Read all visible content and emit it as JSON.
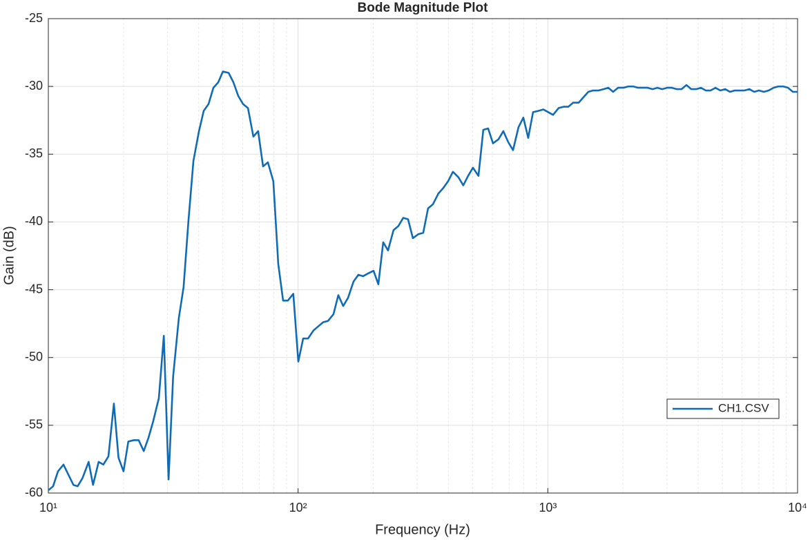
{
  "chart_data": {
    "type": "line",
    "title": "Bode Magnitude Plot",
    "x_label": "Frequency (Hz)",
    "y_label": "Gain (dB)",
    "x_scale": "log",
    "grid": true,
    "legend": "southeast",
    "xlim": [
      10,
      10000
    ],
    "xticks": [
      {
        "value": 10,
        "label": "10¹"
      },
      {
        "value": 100,
        "label": "10²"
      },
      {
        "value": 1000,
        "label": "10³"
      },
      {
        "value": 10000,
        "label": "10⁴"
      }
    ],
    "xminorticks": [
      20,
      30,
      40,
      50,
      60,
      70,
      80,
      90,
      200,
      300,
      400,
      500,
      600,
      700,
      800,
      900,
      2000,
      3000,
      4000,
      5000,
      6000,
      7000,
      8000,
      9000
    ],
    "ylim": [
      -60,
      -25
    ],
    "yticks": [
      -60,
      -55,
      -50,
      -45,
      -40,
      -35,
      -30,
      -25
    ],
    "x": [
      10,
      10.45,
      10.93,
      11.5,
      12.0,
      12.6,
      13.1,
      13.7,
      14.5,
      15.1,
      15.9,
      16.6,
      17.4,
      18.3,
      19.1,
      20.0,
      20.9,
      22.0,
      23.0,
      24.1,
      25.2,
      26.3,
      27.7,
      29.0,
      30.3,
      31.6,
      33.3,
      34.8,
      36.4,
      38.1,
      40.1,
      41.9,
      43.8,
      45.8,
      47.9,
      50.0,
      52.7,
      55.1,
      57.6,
      60.2,
      63.0,
      66.2,
      69.2,
      72.4,
      75.7,
      79.6,
      83.3,
      87.1,
      91.0,
      95.7,
      100.2,
      104.8,
      109.6,
      115.3,
      120.5,
      126.0,
      131.8,
      138.6,
      144.9,
      151.6,
      158.5,
      166.7,
      174.3,
      182.2,
      190.5,
      200.5,
      209.6,
      219.2,
      229.2,
      241.1,
      252.1,
      263.6,
      275.6,
      288.2,
      303.2,
      317.0,
      331.5,
      346.6,
      364.6,
      381.2,
      398.6,
      416.8,
      438.5,
      458.6,
      479.5,
      501.4,
      527.5,
      551.6,
      576.8,
      603.1,
      634.6,
      663.5,
      693.8,
      725.5,
      763.3,
      798.1,
      834.5,
      872.6,
      918.1,
      960.0,
      1003.8,
      1049.6,
      1104.3,
      1154.7,
      1207.4,
      1262.5,
      1328.3,
      1388.9,
      1452.3,
      1518.5,
      1597.6,
      1670.5,
      1746.7,
      1826.4,
      1909.7,
      2009.2,
      2100.9,
      2196.7,
      2297,
      2402,
      2511,
      2626,
      2746,
      2871,
      3002,
      3139,
      3282,
      3432,
      3589,
      3752,
      3924,
      4103,
      4290,
      4486,
      4690,
      4904,
      5128,
      5362,
      5607,
      5862,
      6130,
      6410,
      6702,
      7008,
      7328,
      7662,
      8012,
      8377,
      8760,
      9159,
      9577,
      10000
    ],
    "series": [
      {
        "name": "CH1.CSV",
        "color": "#0f6bb5",
        "values": [
          -59.8,
          -59.5,
          -58.4,
          -57.9,
          -58.6,
          -59.4,
          -59.5,
          -58.9,
          -57.7,
          -59.4,
          -57.7,
          -57.9,
          -57.3,
          -53.4,
          -57.4,
          -58.4,
          -56.2,
          -56.1,
          -56.1,
          -56.9,
          -55.9,
          -54.7,
          -53.0,
          -48.4,
          -59.0,
          -51.4,
          -47.1,
          -44.8,
          -39.9,
          -35.5,
          -33.3,
          -31.8,
          -31.3,
          -30.1,
          -29.7,
          -28.9,
          -29.0,
          -29.7,
          -30.7,
          -31.3,
          -31.6,
          -33.7,
          -33.3,
          -35.9,
          -35.6,
          -37.0,
          -43.1,
          -45.8,
          -45.8,
          -45.3,
          -50.3,
          -48.6,
          -48.6,
          -48.0,
          -47.7,
          -47.4,
          -47.3,
          -46.8,
          -45.4,
          -46.2,
          -45.6,
          -44.4,
          -43.9,
          -44.0,
          -43.8,
          -43.6,
          -44.6,
          -41.5,
          -42.1,
          -40.6,
          -40.3,
          -39.7,
          -39.8,
          -41.2,
          -40.9,
          -40.8,
          -39.0,
          -38.7,
          -37.9,
          -37.5,
          -37.0,
          -36.3,
          -36.7,
          -37.3,
          -36.6,
          -36.0,
          -36.6,
          -33.2,
          -33.1,
          -34.2,
          -33.9,
          -33.3,
          -34.1,
          -34.7,
          -33.0,
          -32.3,
          -33.8,
          -31.9,
          -31.8,
          -31.7,
          -31.9,
          -32.1,
          -31.6,
          -31.5,
          -31.5,
          -31.2,
          -31.2,
          -30.8,
          -30.4,
          -30.3,
          -30.3,
          -30.2,
          -30.1,
          -30.4,
          -30.1,
          -30.1,
          -30.0,
          -30.0,
          -30.1,
          -30.1,
          -30.1,
          -30.2,
          -30.1,
          -30.2,
          -30.1,
          -30.1,
          -30.2,
          -30.2,
          -29.9,
          -30.2,
          -30.2,
          -30.1,
          -30.3,
          -30.3,
          -30.1,
          -30.3,
          -30.2,
          -30.4,
          -30.3,
          -30.3,
          -30.3,
          -30.2,
          -30.4,
          -30.3,
          -30.4,
          -30.3,
          -30.1,
          -30.0,
          -30.0,
          -30.1,
          -30.4,
          -30.4
        ]
      }
    ]
  }
}
